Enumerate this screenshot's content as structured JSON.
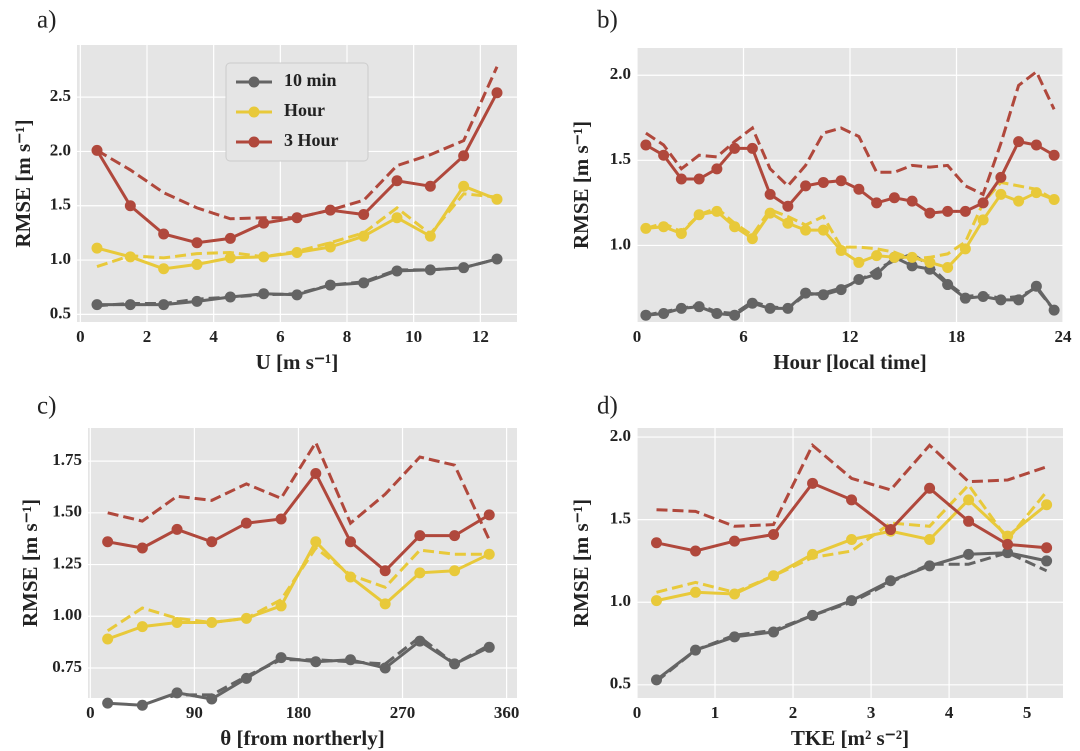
{
  "chart_data": [
    {
      "type": "line",
      "panel_label": "a)",
      "ylabel": "RMSE [m s⁻¹]",
      "xlabel": "U [m s⁻¹]",
      "legend": "upper center",
      "grid": true,
      "x": [
        0.5,
        1.5,
        2.5,
        3.5,
        4.5,
        5.5,
        6.5,
        7.5,
        8.5,
        9.5,
        10.5,
        11.5,
        12.5
      ],
      "xlim": [
        -0.1,
        13.1
      ],
      "xticks": [
        0,
        2,
        4,
        6,
        8,
        10,
        12
      ],
      "ylim": [
        0.43,
        2.98
      ],
      "yticks": [
        0.5,
        {
          "value": 1,
          "label": "1.0"
        },
        1.5,
        {
          "value": 2,
          "label": "2.0"
        },
        2.5
      ],
      "series": [
        {
          "name": "10 min",
          "color": "#646464",
          "values": [
            0.59,
            0.59,
            0.59,
            0.62,
            0.66,
            0.69,
            0.68,
            0.77,
            0.79,
            0.9,
            0.91,
            0.93,
            1.01
          ],
          "dashed": [
            0.58,
            0.6,
            0.6,
            0.64,
            0.66,
            0.68,
            0.69,
            0.77,
            0.8,
            0.91,
            0.91,
            0.93,
            1.01
          ]
        },
        {
          "name": "Hour",
          "color": "#e8c93a",
          "values": [
            1.11,
            1.03,
            0.92,
            0.96,
            1.02,
            1.03,
            1.07,
            1.12,
            1.22,
            1.39,
            1.22,
            1.68,
            1.56
          ],
          "dashed": [
            0.94,
            1.04,
            1.02,
            1.06,
            1.07,
            1.03,
            1.08,
            1.16,
            1.25,
            1.48,
            1.24,
            1.61,
            1.58
          ]
        },
        {
          "name": "3 Hour",
          "color": "#b0483c",
          "values": [
            2.01,
            1.5,
            1.24,
            1.16,
            1.2,
            1.34,
            1.39,
            1.46,
            1.42,
            1.73,
            1.68,
            1.96,
            2.54
          ],
          "dashed": [
            2.01,
            1.83,
            1.62,
            1.48,
            1.38,
            1.39,
            1.39,
            1.46,
            1.55,
            1.87,
            1.97,
            2.1,
            2.78
          ]
        }
      ]
    },
    {
      "type": "line",
      "panel_label": "b)",
      "ylabel": "RMSE [m s⁻¹]",
      "xlabel": "Hour [local time]",
      "grid": true,
      "x": [
        0.5,
        1.5,
        2.5,
        3.5,
        4.5,
        5.5,
        6.5,
        7.5,
        8.5,
        9.5,
        10.5,
        11.5,
        12.5,
        13.5,
        14.5,
        15.5,
        16.5,
        17.5,
        18.5,
        19.5,
        20.5,
        21.5,
        22.5,
        23.5
      ],
      "xlim": [
        0,
        24
      ],
      "xticks": [
        0,
        6,
        12,
        18,
        24
      ],
      "ylim": [
        0.55,
        2.16
      ],
      "yticks": [
        {
          "value": 1,
          "label": "1.0"
        },
        1.5,
        {
          "value": 2,
          "label": "2.0"
        }
      ],
      "series": [
        {
          "color": "#646464",
          "values": [
            0.59,
            0.6,
            0.63,
            0.64,
            0.6,
            0.59,
            0.66,
            0.63,
            0.63,
            0.72,
            0.71,
            0.74,
            0.8,
            0.83,
            0.93,
            0.88,
            0.86,
            0.77,
            0.69,
            0.7,
            0.68,
            0.68,
            0.76,
            0.62
          ],
          "dashed": [
            0.59,
            0.61,
            0.63,
            0.65,
            0.61,
            0.6,
            0.67,
            0.64,
            0.63,
            0.71,
            0.72,
            0.75,
            0.79,
            0.86,
            0.91,
            0.95,
            0.88,
            0.78,
            0.7,
            0.71,
            0.69,
            0.7,
            0.75,
            0.62
          ]
        },
        {
          "color": "#e8c93a",
          "values": [
            1.1,
            1.11,
            1.07,
            1.18,
            1.2,
            1.11,
            1.04,
            1.19,
            1.13,
            1.09,
            1.09,
            0.97,
            0.9,
            0.94,
            0.93,
            0.93,
            0.9,
            0.87,
            0.98,
            1.15,
            1.3,
            1.26,
            1.31,
            1.27
          ],
          "dashed": [
            1.1,
            1.13,
            1.08,
            1.18,
            1.22,
            1.13,
            1.06,
            1.21,
            1.17,
            1.12,
            1.17,
            0.99,
            0.99,
            0.98,
            0.96,
            0.92,
            0.93,
            0.95,
            1.02,
            1.25,
            1.37,
            1.35,
            1.33,
            1.27
          ]
        },
        {
          "color": "#b0483c",
          "values": [
            1.59,
            1.53,
            1.39,
            1.39,
            1.45,
            1.57,
            1.57,
            1.3,
            1.23,
            1.35,
            1.37,
            1.38,
            1.33,
            1.25,
            1.28,
            1.26,
            1.19,
            1.2,
            1.2,
            1.25,
            1.4,
            1.61,
            1.59,
            1.53
          ],
          "dashed": [
            1.66,
            1.59,
            1.45,
            1.53,
            1.52,
            1.61,
            1.69,
            1.45,
            1.35,
            1.47,
            1.66,
            1.69,
            1.64,
            1.43,
            1.43,
            1.47,
            1.46,
            1.47,
            1.35,
            1.3,
            1.6,
            1.94,
            2.02,
            1.8
          ]
        }
      ]
    },
    {
      "type": "line",
      "panel_label": "c)",
      "ylabel": "RMSE [m s⁻¹]",
      "xlabel": "θ [from northerly]",
      "grid": true,
      "x": [
        15,
        45,
        75,
        105,
        135,
        165,
        195,
        225,
        255,
        285,
        315,
        345
      ],
      "xlim": [
        -2,
        369
      ],
      "xticks": [
        0,
        90,
        180,
        270,
        360
      ],
      "ylim": [
        0.605,
        1.91
      ],
      "yticks": [
        0.75,
        {
          "value": 1,
          "label": "1.00"
        },
        1.25,
        {
          "value": 1.5,
          "label": "1.50"
        },
        1.75
      ],
      "series": [
        {
          "color": "#646464",
          "values": [
            0.58,
            0.57,
            0.63,
            0.6,
            0.7,
            0.8,
            0.78,
            0.79,
            0.75,
            0.88,
            0.77,
            0.85
          ],
          "dashed": [
            0.59,
            0.57,
            0.62,
            0.62,
            0.71,
            0.79,
            0.79,
            0.78,
            0.77,
            0.9,
            0.77,
            0.86
          ]
        },
        {
          "color": "#e8c93a",
          "values": [
            0.89,
            0.95,
            0.97,
            0.97,
            0.99,
            1.05,
            1.36,
            1.19,
            1.06,
            1.21,
            1.22,
            1.3
          ],
          "dashed": [
            0.93,
            1.04,
            0.99,
            0.97,
            0.99,
            1.08,
            1.33,
            1.2,
            1.14,
            1.32,
            1.3,
            1.3
          ]
        },
        {
          "color": "#b0483c",
          "values": [
            1.36,
            1.33,
            1.42,
            1.36,
            1.45,
            1.47,
            1.69,
            1.36,
            1.22,
            1.39,
            1.39,
            1.49
          ],
          "dashed": [
            1.5,
            1.46,
            1.58,
            1.56,
            1.64,
            1.57,
            1.84,
            1.45,
            1.59,
            1.77,
            1.73,
            1.37
          ]
        }
      ]
    },
    {
      "type": "line",
      "panel_label": "d)",
      "ylabel": "RMSE [m s⁻¹]",
      "xlabel": "TKE [m² s⁻²]",
      "grid": true,
      "x": [
        0.25,
        0.75,
        1.25,
        1.75,
        2.25,
        2.75,
        3.25,
        3.75,
        4.25,
        4.75,
        5.25
      ],
      "xlim": [
        0,
        5.46
      ],
      "xticks": [
        0,
        1,
        2,
        3,
        4,
        5
      ],
      "ylim": [
        0.42,
        2.055
      ],
      "yticks": [
        0.5,
        {
          "value": 1,
          "label": "1.0"
        },
        1.5,
        {
          "value": 2,
          "label": "2.0"
        }
      ],
      "series": [
        {
          "color": "#646464",
          "values": [
            0.53,
            0.71,
            0.79,
            0.82,
            0.92,
            1.01,
            1.13,
            1.22,
            1.29,
            1.3,
            1.25
          ],
          "dashed": [
            0.52,
            0.71,
            0.8,
            0.83,
            0.92,
            1.0,
            1.12,
            1.23,
            1.23,
            1.3,
            1.19
          ]
        },
        {
          "color": "#e8c93a",
          "values": [
            1.01,
            1.06,
            1.05,
            1.16,
            1.29,
            1.38,
            1.43,
            1.38,
            1.62,
            1.4,
            1.59
          ],
          "dashed": [
            1.06,
            1.12,
            1.06,
            1.16,
            1.27,
            1.31,
            1.48,
            1.46,
            1.71,
            1.38,
            1.67
          ]
        },
        {
          "color": "#b0483c",
          "values": [
            1.36,
            1.31,
            1.37,
            1.41,
            1.72,
            1.62,
            1.44,
            1.69,
            1.49,
            1.35,
            1.33
          ],
          "dashed": [
            1.56,
            1.55,
            1.46,
            1.47,
            1.95,
            1.75,
            1.68,
            1.95,
            1.73,
            1.74,
            1.82
          ]
        }
      ]
    }
  ]
}
